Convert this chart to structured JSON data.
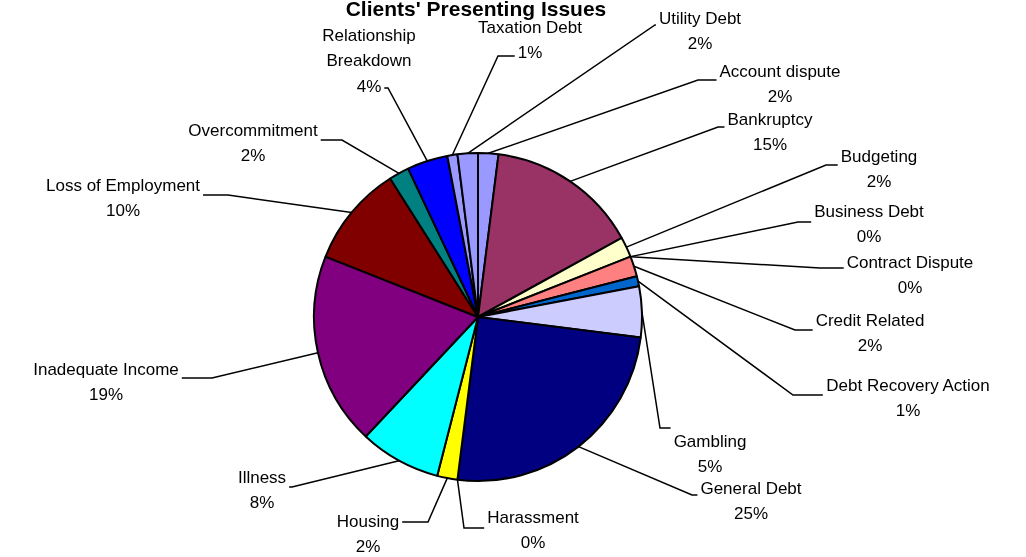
{
  "chart_data": {
    "type": "pie",
    "title": "Clients' Presenting Issues",
    "categories": [
      "Account dispute",
      "Bankruptcy",
      "Budgeting",
      "Business Debt",
      "Contract Dispute",
      "Credit Related",
      "Debt Recovery Action",
      "Gambling",
      "General Debt",
      "Harassment",
      "Housing",
      "Illness",
      "Inadequate Income",
      "Loss of Employment",
      "Overcommitment",
      "Relationship Breakdown",
      "Taxation Debt",
      "Utility Debt"
    ],
    "values": [
      2,
      15,
      2,
      0,
      0,
      2,
      1,
      5,
      25,
      0,
      2,
      8,
      19,
      10,
      2,
      4,
      1,
      2
    ],
    "value_labels": [
      "2%",
      "15%",
      "2%",
      "0%",
      "0%",
      "2%",
      "1%",
      "5%",
      "25%",
      "0%",
      "2%",
      "8%",
      "19%",
      "10%",
      "2%",
      "4%",
      "1%",
      "2%"
    ],
    "colors": [
      "#9999ff",
      "#993366",
      "#ffffcc",
      "#ccffff",
      "#660066",
      "#ff8080",
      "#0066cc",
      "#ccccff",
      "#000080",
      "#ff00ff",
      "#ffff00",
      "#00ffff",
      "#800080",
      "#800000",
      "#008080",
      "#0000ff",
      "#9999ff",
      "#9999ff"
    ],
    "legend": false
  }
}
